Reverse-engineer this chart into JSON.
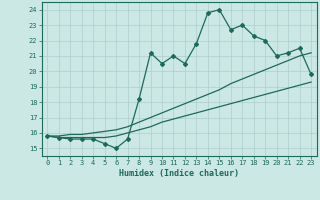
{
  "xlabel": "Humidex (Indice chaleur)",
  "background_color": "#cce8e5",
  "grid_color": "#aecfcc",
  "line_color": "#1a6b5a",
  "x_data": [
    0,
    1,
    2,
    3,
    4,
    5,
    6,
    7,
    8,
    9,
    10,
    11,
    12,
    13,
    14,
    15,
    16,
    17,
    18,
    19,
    20,
    21,
    22,
    23
  ],
  "y_main": [
    15.8,
    15.7,
    15.6,
    15.6,
    15.6,
    15.3,
    15.0,
    15.6,
    18.2,
    21.2,
    20.5,
    21.0,
    20.5,
    21.8,
    23.8,
    24.0,
    22.7,
    23.0,
    22.3,
    22.0,
    21.0,
    21.2,
    21.5,
    19.8
  ],
  "y_line_low": [
    15.8,
    15.7,
    15.7,
    15.7,
    15.7,
    15.7,
    15.8,
    16.0,
    16.2,
    16.4,
    16.7,
    16.9,
    17.1,
    17.3,
    17.5,
    17.7,
    17.9,
    18.1,
    18.3,
    18.5,
    18.7,
    18.9,
    19.1,
    19.3
  ],
  "y_line_high": [
    15.8,
    15.8,
    15.9,
    15.9,
    16.0,
    16.1,
    16.2,
    16.4,
    16.7,
    17.0,
    17.3,
    17.6,
    17.9,
    18.2,
    18.5,
    18.8,
    19.2,
    19.5,
    19.8,
    20.1,
    20.4,
    20.7,
    21.0,
    21.2
  ],
  "ylim": [
    14.5,
    24.5
  ],
  "xlim": [
    -0.5,
    23.5
  ],
  "yticks": [
    15,
    16,
    17,
    18,
    19,
    20,
    21,
    22,
    23,
    24
  ],
  "xticks": [
    0,
    1,
    2,
    3,
    4,
    5,
    6,
    7,
    8,
    9,
    10,
    11,
    12,
    13,
    14,
    15,
    16,
    17,
    18,
    19,
    20,
    21,
    22,
    23
  ]
}
